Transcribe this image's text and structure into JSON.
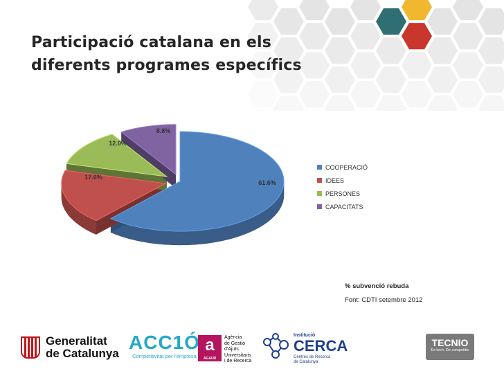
{
  "title_lines": [
    "Participació catalana en els",
    "diferents programes específics"
  ],
  "chart_data": {
    "type": "pie",
    "title": "Participació catalana en els diferents programes específics",
    "labels": [
      "COOPERACIÓ",
      "IDEES",
      "PERSONES",
      "CAPACITATS"
    ],
    "values": [
      61.6,
      17.6,
      12.0,
      8.8
    ],
    "value_labels": [
      "61.6%",
      "17.6%",
      "12.0%",
      "8.8%"
    ],
    "colors": [
      "#4f81bd",
      "#c0504d",
      "#9bbb59",
      "#8064a2"
    ],
    "style": "3d-exploded",
    "legend_position": "right"
  },
  "notes": {
    "measure": "% subvenció rebuda",
    "source": "Font: CDTI setembre 2012"
  },
  "logos": {
    "generalitat": [
      "Generalitat",
      "de Catalunya"
    ],
    "acc1o": {
      "name": "ACC1Ó",
      "tagline": "Competitivitat per l'empresa"
    },
    "agaur": {
      "mark": "a",
      "mark_sub": "AGAUR",
      "text": [
        "Agència",
        "de Gestió",
        "d'Ajuts",
        "Universitaris",
        "i de Recerca"
      ]
    },
    "cerca": {
      "line1": "Institució",
      "name": "CERCA",
      "sub": [
        "Centres de Recerca",
        "de Catalunya"
      ]
    },
    "tecnio": {
      "name": "TECNIO",
      "tagline": "Ex tech. De competitiu"
    }
  },
  "decor_colors": {
    "hex_light": "#e4e4e4",
    "teal": "#2f6f74",
    "yellow": "#f0b72f",
    "red": "#c9362b"
  }
}
